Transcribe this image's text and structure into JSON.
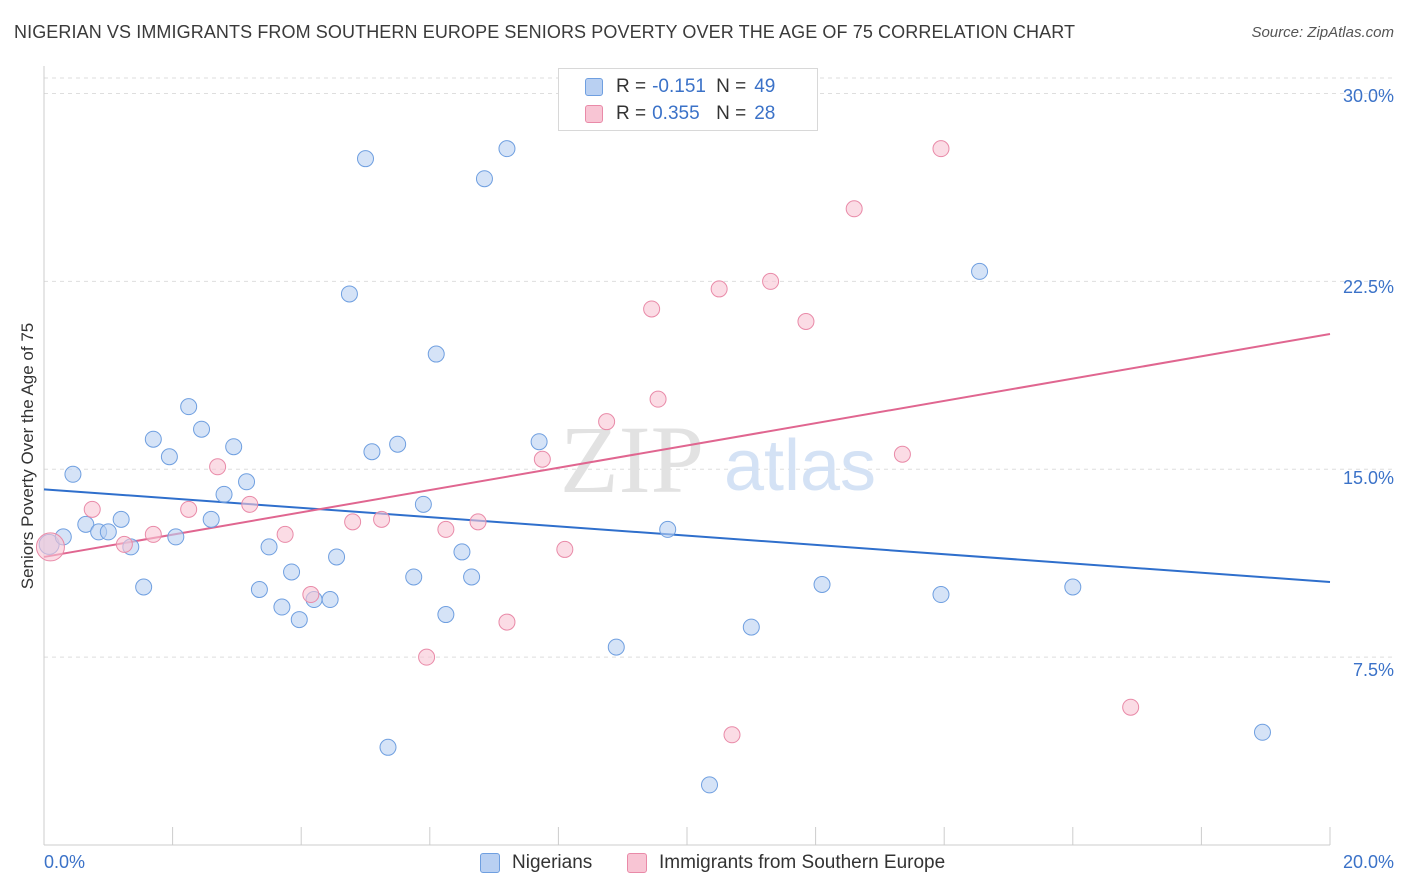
{
  "title": "NIGERIAN VS IMMIGRANTS FROM SOUTHERN EUROPE SENIORS POVERTY OVER THE AGE OF 75 CORRELATION CHART",
  "source": "Source: ZipAtlas.com",
  "watermark": {
    "zip": "ZIP",
    "atlas": "atlas"
  },
  "legend_top": {
    "rows": [
      {
        "r_label": "R =",
        "r_value": "-0.151",
        "n_label": "N =",
        "n_value": "49"
      },
      {
        "r_label": "R =",
        "r_value": "0.355",
        "n_label": "N =",
        "n_value": "28"
      }
    ]
  },
  "colors": {
    "blue_fill": "#b9d0f2",
    "blue_stroke": "#6f9fe0",
    "blue_line": "#2f6fcc",
    "pink_fill": "#f8c5d4",
    "pink_stroke": "#e98aa8",
    "pink_line": "#e06690",
    "tick_text": "#3b72c8",
    "grid": "#dedede"
  },
  "chart_data": {
    "type": "scatter",
    "title": "NIGERIAN VS IMMIGRANTS FROM SOUTHERN EUROPE SENIORS POVERTY OVER THE AGE OF 75 CORRELATION CHART",
    "xlabel": "",
    "ylabel": "Seniors Poverty Over the Age of 75",
    "xlim": [
      0,
      20
    ],
    "ylim": [
      0,
      31.1
    ],
    "x_tick_labels": [
      "0.0%",
      "20.0%"
    ],
    "y_ticks": [
      7.5,
      15.0,
      22.5,
      30.0
    ],
    "y_tick_labels": [
      "7.5%",
      "15.0%",
      "22.5%",
      "30.0%"
    ],
    "grid": "horizontal dashed",
    "legend_position": "bottom",
    "series": [
      {
        "name": "Nigerians",
        "color": "#6f9fe0",
        "r": -0.151,
        "n": 49,
        "trend": {
          "x": [
            0,
            20
          ],
          "y": [
            14.2,
            10.5
          ]
        },
        "points": [
          [
            0.08,
            12.0
          ],
          [
            0.3,
            12.3
          ],
          [
            0.45,
            14.8
          ],
          [
            0.65,
            12.8
          ],
          [
            0.85,
            12.5
          ],
          [
            1.0,
            12.5
          ],
          [
            1.2,
            13.0
          ],
          [
            1.35,
            11.9
          ],
          [
            1.55,
            10.3
          ],
          [
            1.7,
            16.2
          ],
          [
            1.95,
            15.5
          ],
          [
            2.05,
            12.3
          ],
          [
            2.25,
            17.5
          ],
          [
            2.45,
            16.6
          ],
          [
            2.6,
            13.0
          ],
          [
            2.8,
            14.0
          ],
          [
            2.95,
            15.9
          ],
          [
            3.15,
            14.5
          ],
          [
            3.35,
            10.2
          ],
          [
            3.5,
            11.9
          ],
          [
            3.7,
            9.5
          ],
          [
            3.85,
            10.9
          ],
          [
            3.97,
            9.0
          ],
          [
            4.2,
            9.8
          ],
          [
            4.45,
            9.8
          ],
          [
            4.55,
            11.5
          ],
          [
            4.75,
            22.0
          ],
          [
            5.0,
            27.4
          ],
          [
            5.1,
            15.7
          ],
          [
            5.35,
            3.9
          ],
          [
            5.5,
            16.0
          ],
          [
            5.75,
            10.7
          ],
          [
            5.9,
            13.6
          ],
          [
            6.1,
            19.6
          ],
          [
            6.25,
            9.2
          ],
          [
            6.5,
            11.7
          ],
          [
            6.65,
            10.7
          ],
          [
            6.85,
            26.6
          ],
          [
            7.2,
            27.8
          ],
          [
            7.7,
            16.1
          ],
          [
            8.9,
            7.9
          ],
          [
            9.7,
            12.6
          ],
          [
            10.35,
            2.4
          ],
          [
            11.0,
            8.7
          ],
          [
            12.1,
            10.4
          ],
          [
            13.95,
            10.0
          ],
          [
            14.55,
            22.9
          ],
          [
            16.0,
            10.3
          ],
          [
            18.95,
            4.5
          ]
        ]
      },
      {
        "name": "Immigrants from Southern Europe",
        "color": "#e98aa8",
        "r": 0.355,
        "n": 28,
        "trend": {
          "x": [
            0,
            20
          ],
          "y": [
            11.5,
            20.4
          ]
        },
        "points": [
          [
            0.1,
            11.9
          ],
          [
            0.75,
            13.4
          ],
          [
            1.25,
            12.0
          ],
          [
            1.7,
            12.4
          ],
          [
            2.25,
            13.4
          ],
          [
            2.7,
            15.1
          ],
          [
            3.2,
            13.6
          ],
          [
            3.75,
            12.4
          ],
          [
            4.15,
            10.0
          ],
          [
            4.8,
            12.9
          ],
          [
            5.25,
            13.0
          ],
          [
            5.95,
            7.5
          ],
          [
            6.25,
            12.6
          ],
          [
            6.75,
            12.9
          ],
          [
            7.2,
            8.9
          ],
          [
            7.75,
            15.4
          ],
          [
            8.1,
            11.8
          ],
          [
            8.75,
            16.9
          ],
          [
            9.45,
            21.4
          ],
          [
            9.55,
            17.8
          ],
          [
            10.5,
            22.2
          ],
          [
            10.7,
            4.4
          ],
          [
            11.3,
            22.5
          ],
          [
            11.85,
            20.9
          ],
          [
            12.6,
            25.4
          ],
          [
            13.35,
            15.6
          ],
          [
            13.95,
            27.8
          ],
          [
            16.9,
            5.5
          ]
        ]
      }
    ]
  },
  "legend_bottom": {
    "items": [
      {
        "label": "Nigerians"
      },
      {
        "label": "Immigrants from Southern Europe"
      }
    ]
  }
}
